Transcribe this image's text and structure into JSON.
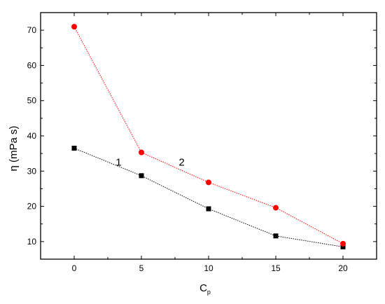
{
  "chart_data": {
    "type": "line",
    "x": [
      0,
      5,
      10,
      15,
      20
    ],
    "series": [
      {
        "name": "1",
        "values": [
          36.5,
          28.7,
          19.3,
          11.6,
          8.5
        ],
        "color": "#000000",
        "marker": "square",
        "line_style": "dotted"
      },
      {
        "name": "2",
        "values": [
          71.0,
          35.3,
          26.8,
          19.6,
          9.4
        ],
        "color": "#ff0000",
        "marker": "circle",
        "line_style": "dotted"
      }
    ],
    "xlabel": "C",
    "xlabel_subscript": "p",
    "ylabel": "η (mPa s)",
    "xlim": [
      -2.5,
      22.5
    ],
    "ylim": [
      5,
      75
    ],
    "xticks": [
      0,
      5,
      10,
      15,
      20
    ],
    "yticks": [
      10,
      20,
      30,
      40,
      50,
      60,
      70
    ],
    "xtick_labels": [
      "0",
      "5",
      "10",
      "15",
      "20"
    ],
    "ytick_labels": [
      "10",
      "20",
      "30",
      "40",
      "50",
      "60",
      "70"
    ],
    "annotations": [
      {
        "text": "1",
        "x": 3.3,
        "y": 31.5
      },
      {
        "text": "2",
        "x": 8.0,
        "y": 31.5
      }
    ],
    "grid": false,
    "legend": "none"
  }
}
